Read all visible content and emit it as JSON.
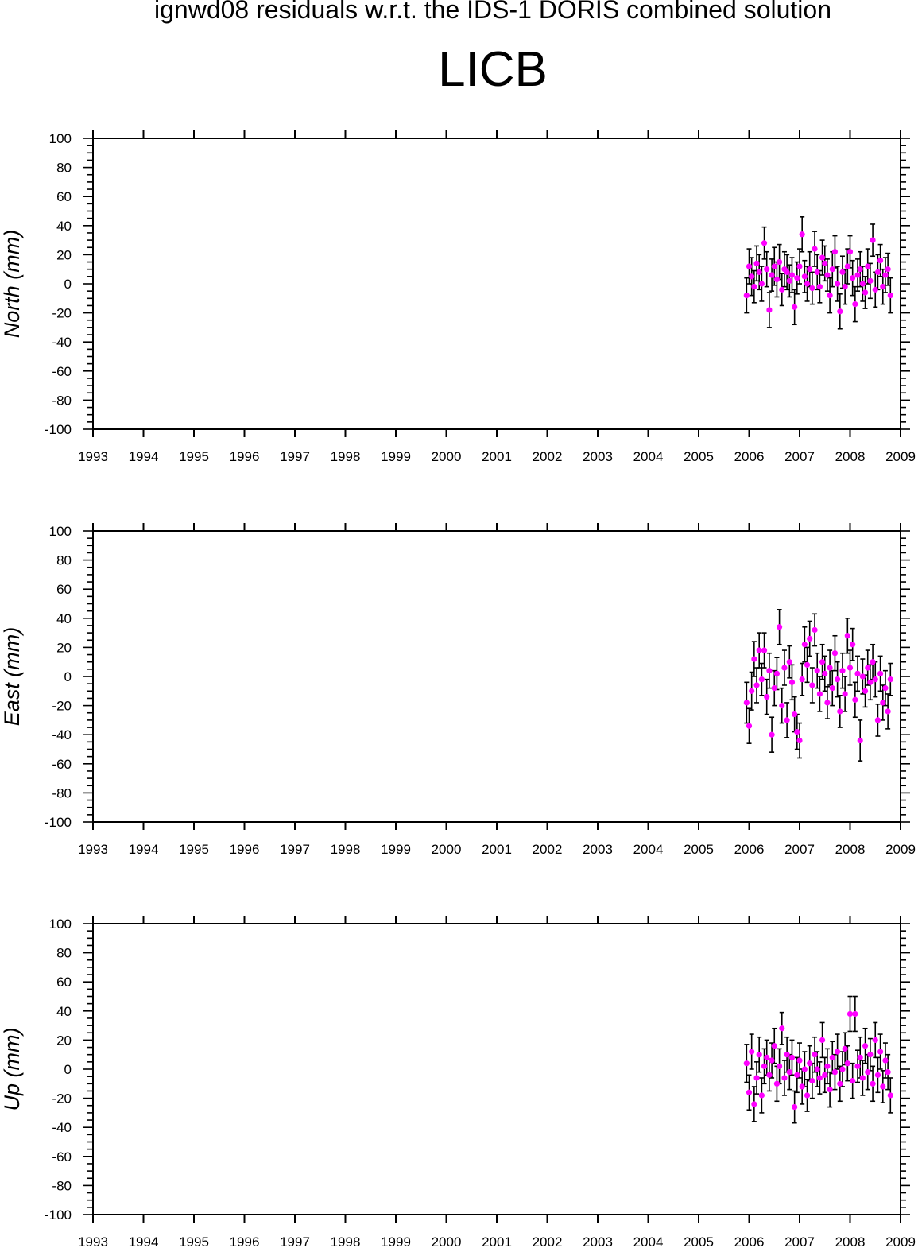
{
  "title": "ignwd08 residuals w.r.t. the IDS-1 DORIS combined solution",
  "station": "LICB",
  "colors": {
    "marker": "#ff00ff",
    "errorbar": "#000000",
    "axes": "#000000"
  },
  "chart_data": [
    {
      "type": "scatter",
      "component": "north",
      "ylabel": "North (mm)",
      "xlim": [
        1993,
        2009
      ],
      "ylim": [
        -100,
        100
      ],
      "xticks": [
        "1993",
        "1994",
        "1995",
        "1996",
        "1997",
        "1998",
        "1999",
        "2000",
        "2001",
        "2002",
        "2003",
        "2004",
        "2005",
        "2006",
        "2007",
        "2008",
        "2009"
      ],
      "yticks": [
        "100",
        "80",
        "60",
        "40",
        "20",
        "0",
        "-20",
        "-40",
        "-60",
        "-80",
        "-100"
      ],
      "grid": false,
      "error_bars": true,
      "series": [
        {
          "x": [
            2005.95,
            2006.0,
            2006.05,
            2006.1,
            2006.15,
            2006.2,
            2006.25,
            2006.3,
            2006.35,
            2006.4,
            2006.45,
            2006.5,
            2006.55,
            2006.6,
            2006.65,
            2006.7,
            2006.75,
            2006.8,
            2006.85,
            2006.9,
            2006.95,
            2007.0,
            2007.05,
            2007.1,
            2007.15,
            2007.2,
            2007.25,
            2007.3,
            2007.35,
            2007.4,
            2007.45,
            2007.5,
            2007.55,
            2007.6,
            2007.65,
            2007.7,
            2007.75,
            2007.8,
            2007.85,
            2007.9,
            2007.95,
            2008.0,
            2008.05,
            2008.1,
            2008.15,
            2008.2,
            2008.25,
            2008.3,
            2008.35,
            2008.4,
            2008.45,
            2008.5,
            2008.55,
            2008.6,
            2008.65,
            2008.7,
            2008.75,
            2008.8
          ],
          "y": [
            -8,
            12,
            5,
            -2,
            14,
            8,
            0,
            28,
            10,
            -18,
            6,
            12,
            3,
            15,
            -4,
            10,
            8,
            2,
            6,
            -16,
            4,
            12,
            34,
            5,
            0,
            10,
            -3,
            24,
            8,
            -2,
            18,
            14,
            6,
            -8,
            10,
            22,
            0,
            -19,
            8,
            -2,
            12,
            22,
            4,
            -14,
            6,
            10,
            0,
            -6,
            12,
            2,
            30,
            -4,
            8,
            16,
            -2,
            6,
            10,
            -8
          ],
          "err": [
            12,
            12,
            13,
            11,
            12,
            12,
            12,
            11,
            12,
            12,
            11,
            13,
            12,
            12,
            11,
            12,
            12,
            11,
            12,
            12,
            11,
            12,
            12,
            11,
            12,
            12,
            11,
            12,
            12,
            11,
            12,
            12,
            11,
            12,
            12,
            11,
            12,
            12,
            11,
            12,
            12,
            11,
            12,
            12,
            11,
            12,
            12,
            11,
            12,
            12,
            11,
            12,
            12,
            11,
            12,
            12,
            11,
            12
          ]
        }
      ]
    },
    {
      "type": "scatter",
      "component": "east",
      "ylabel": "East (mm)",
      "xlim": [
        1993,
        2009
      ],
      "ylim": [
        -100,
        100
      ],
      "xticks": [
        "1993",
        "1994",
        "1995",
        "1996",
        "1997",
        "1998",
        "1999",
        "2000",
        "2001",
        "2002",
        "2003",
        "2004",
        "2005",
        "2006",
        "2007",
        "2008",
        "2009"
      ],
      "yticks": [
        "100",
        "80",
        "60",
        "40",
        "20",
        "0",
        "-20",
        "-40",
        "-60",
        "-80",
        "-100"
      ],
      "grid": false,
      "error_bars": true,
      "series": [
        {
          "x": [
            2005.95,
            2006.0,
            2006.05,
            2006.1,
            2006.15,
            2006.2,
            2006.25,
            2006.3,
            2006.35,
            2006.4,
            2006.45,
            2006.5,
            2006.55,
            2006.6,
            2006.65,
            2006.7,
            2006.75,
            2006.8,
            2006.85,
            2006.9,
            2006.95,
            2007.0,
            2007.05,
            2007.1,
            2007.15,
            2007.2,
            2007.25,
            2007.3,
            2007.35,
            2007.4,
            2007.45,
            2007.5,
            2007.55,
            2007.6,
            2007.65,
            2007.7,
            2007.75,
            2007.8,
            2007.85,
            2007.9,
            2007.95,
            2008.0,
            2008.05,
            2008.1,
            2008.15,
            2008.2,
            2008.25,
            2008.3,
            2008.35,
            2008.4,
            2008.45,
            2008.5,
            2008.55,
            2008.6,
            2008.65,
            2008.7,
            2008.75,
            2008.8
          ],
          "y": [
            -18,
            -34,
            -10,
            12,
            -6,
            18,
            -2,
            18,
            -14,
            4,
            -40,
            -8,
            2,
            34,
            -20,
            6,
            -30,
            10,
            -4,
            -26,
            -38,
            -44,
            -2,
            22,
            8,
            26,
            -6,
            32,
            4,
            -12,
            10,
            2,
            -18,
            6,
            -8,
            16,
            -2,
            -24,
            4,
            -12,
            28,
            6,
            22,
            -16,
            2,
            -44,
            0,
            -10,
            6,
            -4,
            10,
            -2,
            -30,
            2,
            -18,
            -8,
            -24,
            -2
          ],
          "err": [
            14,
            12,
            13,
            12,
            12,
            12,
            11,
            12,
            12,
            12,
            12,
            12,
            11,
            12,
            12,
            12,
            12,
            11,
            12,
            12,
            12,
            12,
            11,
            12,
            12,
            12,
            12,
            11,
            12,
            12,
            12,
            12,
            11,
            12,
            12,
            12,
            12,
            11,
            12,
            12,
            12,
            12,
            11,
            12,
            12,
            14,
            12,
            11,
            12,
            12,
            12,
            12,
            11,
            12,
            12,
            12,
            12,
            11
          ]
        }
      ]
    },
    {
      "type": "scatter",
      "component": "up",
      "ylabel": "Up (mm)",
      "xlim": [
        1993,
        2009
      ],
      "ylim": [
        -100,
        100
      ],
      "xticks": [
        "1993",
        "1994",
        "1995",
        "1996",
        "1997",
        "1998",
        "1999",
        "2000",
        "2001",
        "2002",
        "2003",
        "2004",
        "2005",
        "2006",
        "2007",
        "2008",
        "2009"
      ],
      "yticks": [
        "100",
        "80",
        "60",
        "40",
        "20",
        "0",
        "-20",
        "-40",
        "-60",
        "-80",
        "-100"
      ],
      "grid": false,
      "error_bars": true,
      "series": [
        {
          "x": [
            2005.95,
            2006.0,
            2006.05,
            2006.1,
            2006.15,
            2006.2,
            2006.25,
            2006.3,
            2006.35,
            2006.4,
            2006.45,
            2006.5,
            2006.55,
            2006.6,
            2006.65,
            2006.7,
            2006.75,
            2006.8,
            2006.85,
            2006.9,
            2006.95,
            2007.0,
            2007.05,
            2007.1,
            2007.15,
            2007.2,
            2007.25,
            2007.3,
            2007.35,
            2007.4,
            2007.45,
            2007.5,
            2007.55,
            2007.6,
            2007.65,
            2007.7,
            2007.75,
            2007.8,
            2007.85,
            2007.9,
            2007.95,
            2008.0,
            2008.05,
            2008.1,
            2008.15,
            2008.2,
            2008.25,
            2008.3,
            2008.35,
            2008.4,
            2008.45,
            2008.5,
            2008.55,
            2008.6,
            2008.65,
            2008.7,
            2008.75,
            2008.8
          ],
          "y": [
            4,
            -16,
            12,
            -24,
            -6,
            10,
            -18,
            2,
            8,
            -4,
            6,
            16,
            -10,
            2,
            28,
            -6,
            10,
            -2,
            8,
            -26,
            -4,
            6,
            -12,
            0,
            -18,
            4,
            -8,
            10,
            0,
            -6,
            20,
            -4,
            2,
            -14,
            8,
            -2,
            12,
            -10,
            0,
            14,
            4,
            38,
            -8,
            38,
            2,
            8,
            -6,
            16,
            -2,
            10,
            -10,
            20,
            -4,
            12,
            -12,
            6,
            -2,
            -18
          ],
          "err": [
            13,
            12,
            12,
            12,
            11,
            12,
            12,
            12,
            12,
            11,
            12,
            12,
            12,
            12,
            11,
            12,
            12,
            12,
            12,
            11,
            12,
            12,
            12,
            12,
            11,
            12,
            12,
            12,
            12,
            11,
            12,
            12,
            12,
            12,
            11,
            12,
            12,
            12,
            12,
            11,
            12,
            12,
            12,
            12,
            11,
            14,
            12,
            12,
            12,
            11,
            12,
            12,
            12,
            12,
            11,
            12,
            12,
            12
          ]
        }
      ]
    }
  ]
}
